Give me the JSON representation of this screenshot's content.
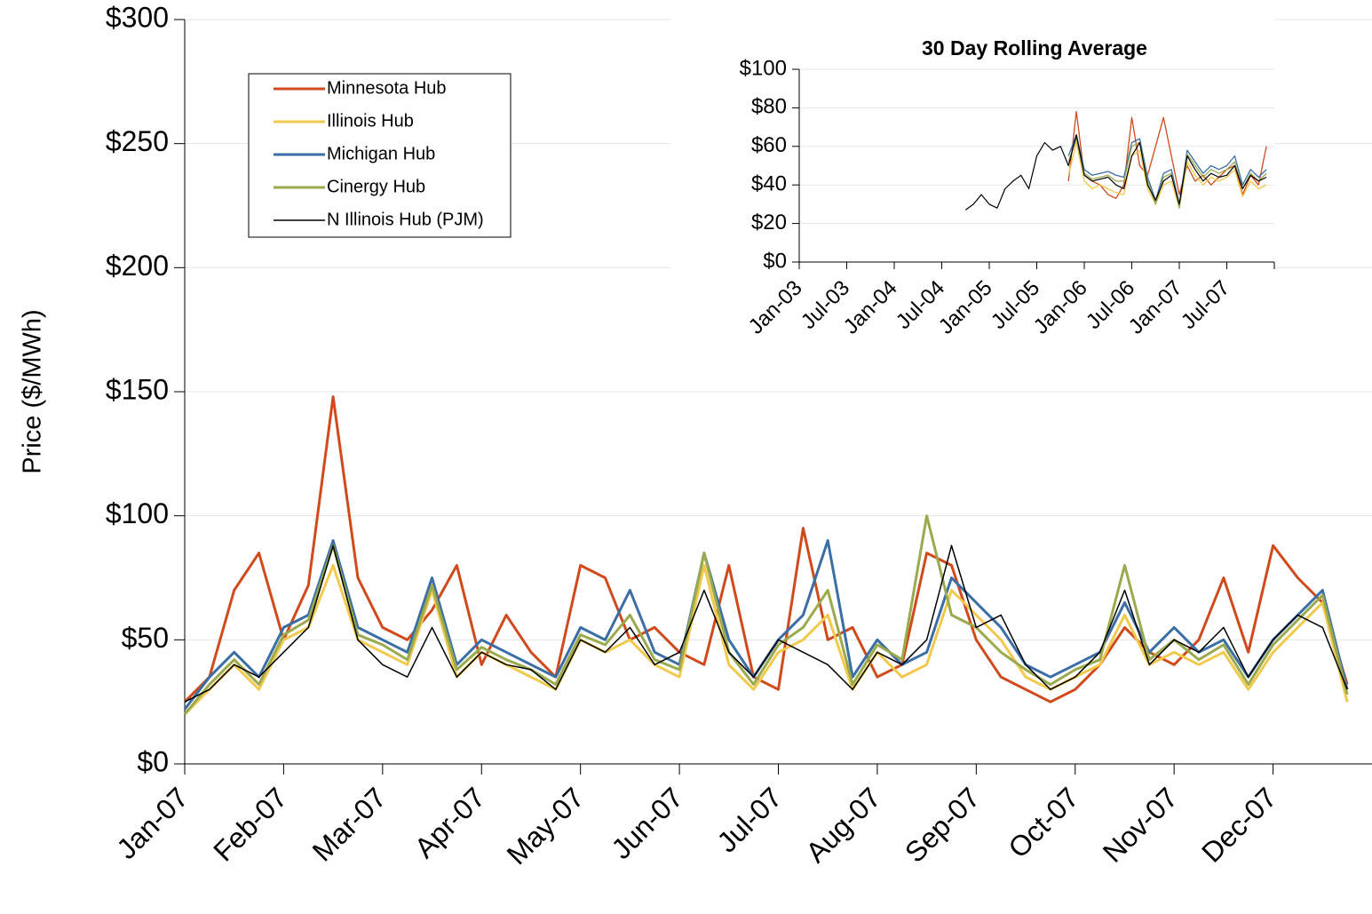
{
  "chart_data": [
    {
      "type": "line",
      "ylabel": "Price ($/MWh)",
      "categories": [
        "Jan-07",
        null,
        null,
        null,
        "Feb-07",
        null,
        null,
        null,
        "Mar-07",
        null,
        null,
        null,
        "Apr-07",
        null,
        null,
        null,
        "May-07",
        null,
        null,
        null,
        "Jun-07",
        null,
        null,
        null,
        "Jul-07",
        null,
        null,
        null,
        "Aug-07",
        null,
        null,
        null,
        "Sep-07",
        null,
        null,
        null,
        "Oct-07",
        null,
        null,
        null,
        "Nov-07",
        null,
        null,
        null,
        "Dec-07",
        null,
        null,
        null
      ],
      "series": [
        {
          "name": "Minnesota Hub",
          "color": "#d04a1c",
          "values": [
            25,
            35,
            70,
            85,
            50,
            72,
            148,
            75,
            55,
            50,
            62,
            80,
            40,
            60,
            45,
            35,
            80,
            75,
            50,
            55,
            45,
            40,
            80,
            35,
            30,
            95,
            50,
            55,
            35,
            40,
            85,
            80,
            50,
            35,
            30,
            25,
            30,
            40,
            55,
            45,
            40,
            50,
            75,
            45,
            88,
            75,
            65,
            32
          ]
        },
        {
          "name": "Illinois Hub",
          "color": "#f2c94c",
          "values": [
            20,
            30,
            40,
            30,
            50,
            55,
            80,
            50,
            45,
            40,
            70,
            35,
            45,
            40,
            35,
            30,
            50,
            45,
            50,
            40,
            35,
            80,
            40,
            30,
            45,
            50,
            60,
            30,
            45,
            35,
            40,
            70,
            60,
            50,
            35,
            30,
            35,
            40,
            60,
            40,
            45,
            40,
            45,
            30,
            45,
            55,
            65,
            25
          ]
        },
        {
          "name": "Michigan Hub",
          "color": "#3a6ea5",
          "values": [
            22,
            35,
            45,
            35,
            55,
            60,
            90,
            55,
            50,
            45,
            75,
            40,
            50,
            45,
            40,
            35,
            55,
            50,
            70,
            45,
            40,
            85,
            50,
            35,
            50,
            60,
            90,
            35,
            50,
            40,
            45,
            75,
            65,
            55,
            40,
            35,
            40,
            45,
            65,
            45,
            55,
            45,
            50,
            35,
            50,
            60,
            70,
            30
          ]
        },
        {
          "name": "Cinergy Hub",
          "color": "#9aaa4c",
          "values": [
            20,
            32,
            42,
            32,
            52,
            58,
            88,
            52,
            48,
            42,
            72,
            38,
            47,
            42,
            38,
            32,
            52,
            48,
            60,
            42,
            38,
            85,
            45,
            32,
            48,
            55,
            70,
            32,
            48,
            42,
            100,
            60,
            55,
            45,
            38,
            32,
            38,
            42,
            80,
            42,
            50,
            42,
            48,
            32,
            48,
            58,
            68,
            28
          ]
        },
        {
          "name": "N Illinois Hub (PJM)",
          "color": "#000000",
          "values": [
            25,
            30,
            40,
            35,
            45,
            55,
            88,
            50,
            40,
            35,
            55,
            35,
            45,
            40,
            38,
            30,
            50,
            45,
            55,
            40,
            45,
            70,
            45,
            35,
            50,
            45,
            40,
            30,
            45,
            40,
            50,
            88,
            55,
            60,
            40,
            30,
            35,
            45,
            70,
            40,
            50,
            45,
            55,
            35,
            50,
            60,
            55,
            30
          ]
        }
      ],
      "ylim": [
        0,
        300
      ],
      "yticks": [
        {
          "value": 0,
          "label": "$0"
        },
        {
          "value": 50,
          "label": "$50"
        },
        {
          "value": 100,
          "label": "$100"
        },
        {
          "value": 150,
          "label": "$150"
        },
        {
          "value": 200,
          "label": "$200"
        },
        {
          "value": 250,
          "label": "$250"
        },
        {
          "value": 300,
          "label": "$300"
        }
      ],
      "grid": true,
      "legend": "upper left"
    },
    {
      "type": "line",
      "title": "30 Day Rolling Average",
      "categories": [
        "Jan-03",
        null,
        null,
        null,
        null,
        null,
        "Jul-03",
        null,
        null,
        null,
        null,
        null,
        "Jan-04",
        null,
        null,
        null,
        null,
        null,
        "Jul-04",
        null,
        null,
        null,
        null,
        null,
        "Jan-05",
        null,
        null,
        null,
        null,
        null,
        "Jul-05",
        null,
        null,
        null,
        null,
        null,
        "Jan-06",
        null,
        null,
        null,
        null,
        null,
        "Jul-06",
        null,
        null,
        null,
        null,
        null,
        "Jan-07",
        null,
        null,
        null,
        null,
        null,
        "Jul-07",
        null,
        null,
        null,
        null,
        null
      ],
      "series": [
        {
          "color": "#d04a1c",
          "values": [
            null,
            null,
            null,
            null,
            null,
            null,
            null,
            null,
            null,
            null,
            null,
            null,
            null,
            null,
            null,
            null,
            null,
            null,
            null,
            null,
            null,
            null,
            null,
            null,
            null,
            null,
            null,
            null,
            null,
            null,
            null,
            null,
            null,
            null,
            42,
            78,
            45,
            42,
            40,
            35,
            33,
            40,
            75,
            50,
            45,
            60,
            75,
            55,
            35,
            50,
            42,
            45,
            40,
            44,
            48,
            50,
            35,
            45,
            40,
            60
          ]
        },
        {
          "color": "#f2c94c",
          "values": [
            null,
            null,
            null,
            null,
            null,
            null,
            null,
            null,
            null,
            null,
            null,
            null,
            null,
            null,
            null,
            null,
            null,
            null,
            null,
            null,
            null,
            null,
            null,
            null,
            null,
            null,
            null,
            null,
            null,
            null,
            null,
            null,
            null,
            null,
            45,
            62,
            42,
            38,
            40,
            38,
            36,
            35,
            55,
            58,
            38,
            30,
            40,
            42,
            28,
            52,
            45,
            40,
            44,
            42,
            44,
            48,
            34,
            42,
            38,
            40
          ]
        },
        {
          "color": "#3a6ea5",
          "values": [
            null,
            null,
            null,
            null,
            null,
            null,
            null,
            null,
            null,
            null,
            null,
            null,
            null,
            null,
            null,
            null,
            null,
            null,
            null,
            null,
            null,
            null,
            null,
            null,
            null,
            null,
            null,
            null,
            null,
            null,
            null,
            null,
            null,
            null,
            55,
            66,
            48,
            45,
            46,
            47,
            45,
            44,
            62,
            64,
            44,
            32,
            46,
            48,
            30,
            58,
            52,
            46,
            50,
            48,
            50,
            55,
            40,
            48,
            44,
            48
          ]
        },
        {
          "color": "#9aaa4c",
          "values": [
            null,
            null,
            null,
            null,
            null,
            null,
            null,
            null,
            null,
            null,
            null,
            null,
            null,
            null,
            null,
            null,
            null,
            null,
            null,
            null,
            null,
            null,
            null,
            null,
            null,
            null,
            null,
            null,
            null,
            null,
            null,
            null,
            null,
            null,
            52,
            64,
            46,
            43,
            44,
            45,
            42,
            42,
            60,
            62,
            42,
            30,
            44,
            46,
            28,
            56,
            50,
            44,
            48,
            46,
            48,
            52,
            38,
            46,
            42,
            46
          ]
        },
        {
          "color": "#000000",
          "values": [
            null,
            null,
            null,
            null,
            null,
            null,
            null,
            null,
            null,
            null,
            null,
            null,
            null,
            null,
            null,
            null,
            null,
            null,
            null,
            null,
            null,
            27,
            30,
            35,
            30,
            28,
            38,
            42,
            45,
            38,
            55,
            62,
            58,
            60,
            50,
            66,
            45,
            42,
            43,
            44,
            40,
            38,
            55,
            62,
            40,
            32,
            42,
            45,
            30,
            55,
            48,
            42,
            46,
            44,
            45,
            50,
            38,
            45,
            42,
            44
          ]
        }
      ],
      "ylim": [
        0,
        100
      ],
      "yticks": [
        {
          "value": 0,
          "label": "$0"
        },
        {
          "value": 20,
          "label": "$20"
        },
        {
          "value": 40,
          "label": "$40"
        },
        {
          "value": 60,
          "label": "$60"
        },
        {
          "value": 80,
          "label": "$80"
        },
        {
          "value": 100,
          "label": "$100"
        }
      ],
      "grid": true
    }
  ]
}
